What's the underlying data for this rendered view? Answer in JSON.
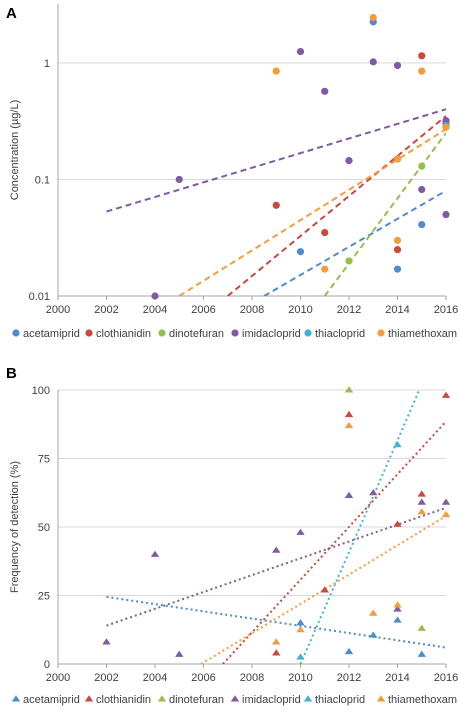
{
  "colors": {
    "acetamiprid": "#4e8ccd",
    "clothianidin": "#c9493a",
    "dinotefuran": "#93c047",
    "imidacloprid": "#7e5aa8",
    "thiacloprid": "#3fb3d1",
    "thiamethoxam": "#f59b3c",
    "grid": "#d9d9d9",
    "axis": "#a6a6a6",
    "text": "#404040"
  },
  "chart_data": [
    {
      "panel_label": "A",
      "type": "scatter",
      "ylabel": "Concentration (µg/L)",
      "xlabel": "",
      "xlim": [
        2000,
        2016
      ],
      "xticks": [
        "2000",
        "2002",
        "2004",
        "2006",
        "2008",
        "2010",
        "2012",
        "2014",
        "2016"
      ],
      "y_scale": "log",
      "ylim": [
        0.01,
        3.2
      ],
      "yticks": [
        "0.01",
        "0.1",
        "1"
      ],
      "grid": "horizontal",
      "legend_position": "bottom",
      "marker": "circle",
      "trendline_style": "dashed",
      "series": [
        {
          "name": "acetamiprid",
          "points": [
            [
              2010,
              0.024
            ],
            [
              2013,
              2.25
            ],
            [
              2014,
              0.017
            ],
            [
              2014,
              0.15
            ],
            [
              2015,
              0.041
            ]
          ],
          "trend": [
            [
              2008.5,
              0.01
            ],
            [
              2016,
              0.08
            ]
          ]
        },
        {
          "name": "clothianidin",
          "points": [
            [
              2009,
              0.06
            ],
            [
              2011,
              0.035
            ],
            [
              2014,
              0.025
            ],
            [
              2015,
              1.15
            ],
            [
              2016,
              0.3
            ]
          ],
          "trend": [
            [
              2007,
              0.01
            ],
            [
              2016,
              0.35
            ]
          ]
        },
        {
          "name": "dinotefuran",
          "points": [
            [
              2012,
              0.02
            ],
            [
              2015,
              0.13
            ]
          ],
          "trend": [
            [
              2011,
              0.01
            ],
            [
              2016,
              0.25
            ]
          ]
        },
        {
          "name": "imidacloprid",
          "points": [
            [
              2004,
              0.01
            ],
            [
              2005,
              0.1
            ],
            [
              2010,
              1.25
            ],
            [
              2011,
              0.57
            ],
            [
              2012,
              0.145
            ],
            [
              2013,
              1.02
            ],
            [
              2014,
              0.95
            ],
            [
              2015,
              0.082
            ],
            [
              2016,
              0.05
            ],
            [
              2016,
              0.32
            ]
          ],
          "trend": [
            [
              2002,
              0.053
            ],
            [
              2016,
              0.4
            ]
          ]
        },
        {
          "name": "thiacloprid",
          "points": [
            [
              2014,
              0.15
            ],
            [
              2016,
              0.29
            ]
          ],
          "trend": []
        },
        {
          "name": "thiamethoxam",
          "points": [
            [
              2009,
              0.85
            ],
            [
              2011,
              0.017
            ],
            [
              2013,
              2.45
            ],
            [
              2014,
              0.03
            ],
            [
              2014,
              0.15
            ],
            [
              2015,
              0.85
            ],
            [
              2016,
              0.28
            ]
          ],
          "trend": [
            [
              2005,
              0.01
            ],
            [
              2016,
              0.27
            ]
          ]
        }
      ]
    },
    {
      "panel_label": "B",
      "type": "scatter",
      "ylabel": "Frequency of detection (%)",
      "xlabel": "",
      "xlim": [
        2000,
        2016
      ],
      "xticks": [
        "2000",
        "2002",
        "2004",
        "2006",
        "2008",
        "2010",
        "2012",
        "2014",
        "2016"
      ],
      "ylim": [
        0,
        100
      ],
      "yticks": [
        "0",
        "25",
        "50",
        "75",
        "100"
      ],
      "grid": "horizontal",
      "legend_position": "bottom",
      "marker": "triangle",
      "trendline_style": "dotted",
      "series": [
        {
          "name": "acetamiprid",
          "points": [
            [
              2010,
              15
            ],
            [
              2012,
              4.5
            ],
            [
              2013,
              10.5
            ],
            [
              2014,
              16
            ],
            [
              2015,
              3.5
            ]
          ],
          "trend": [
            [
              2002,
              24.5
            ],
            [
              2016,
              6
            ]
          ]
        },
        {
          "name": "clothianidin",
          "points": [
            [
              2009,
              4
            ],
            [
              2011,
              27
            ],
            [
              2012,
              91
            ],
            [
              2014,
              51
            ],
            [
              2015,
              62
            ],
            [
              2016,
              98
            ]
          ],
          "trend": [
            [
              2006.8,
              0
            ],
            [
              2016,
              88.5
            ]
          ]
        },
        {
          "name": "dinotefuran",
          "points": [
            [
              2012,
              100
            ],
            [
              2015,
              13
            ]
          ],
          "trend": []
        },
        {
          "name": "imidacloprid",
          "points": [
            [
              2002,
              8
            ],
            [
              2004,
              40
            ],
            [
              2005,
              3.5
            ],
            [
              2009,
              41.5
            ],
            [
              2010,
              48
            ],
            [
              2012,
              61.5
            ],
            [
              2013,
              62.5
            ],
            [
              2014,
              20
            ],
            [
              2015,
              59
            ],
            [
              2016,
              59
            ]
          ],
          "trend": [
            [
              2002,
              14
            ],
            [
              2016,
              57
            ]
          ]
        },
        {
          "name": "thiacloprid",
          "points": [
            [
              2010,
              2.5
            ],
            [
              2014,
              80
            ]
          ],
          "trend": [
            [
              2010,
              0
            ],
            [
              2014.9,
              100
            ]
          ]
        },
        {
          "name": "thiamethoxam",
          "points": [
            [
              2009,
              8
            ],
            [
              2010,
              12.5
            ],
            [
              2012,
              87
            ],
            [
              2013,
              18.5
            ],
            [
              2014,
              21.5
            ],
            [
              2015,
              55.5
            ],
            [
              2016,
              54.5
            ]
          ],
          "trend": [
            [
              2005.9,
              0
            ],
            [
              2016,
              54
            ]
          ]
        }
      ]
    }
  ]
}
